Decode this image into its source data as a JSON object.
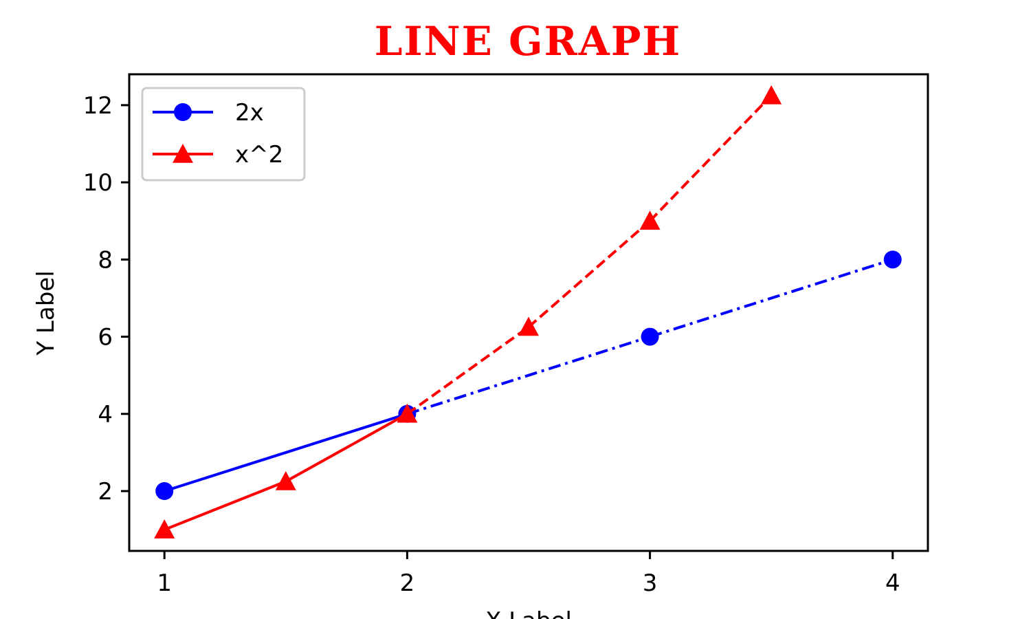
{
  "chart_data": {
    "type": "line",
    "title": "LINE GRAPH",
    "xlabel": "X Label",
    "ylabel": "Y Label",
    "xlim": [
      0.855,
      4.145
    ],
    "ylim": [
      0.45,
      12.8
    ],
    "xticks": [
      1,
      2,
      3,
      4
    ],
    "xtick_labels": [
      "1",
      "2",
      "3",
      "4"
    ],
    "yticks": [
      2,
      4,
      6,
      8,
      10,
      12
    ],
    "ytick_labels": [
      "2",
      "4",
      "6",
      "8",
      "10",
      "12"
    ],
    "grid": false,
    "legend_position": "top-left",
    "series": [
      {
        "name": "2x",
        "color": "#0000ff",
        "marker": "circle",
        "x": [
          1,
          2,
          3,
          4
        ],
        "y": [
          2,
          4,
          6,
          8
        ],
        "line_styles": [
          "solid",
          "dashdot",
          "dashdot"
        ]
      },
      {
        "name": "x^2",
        "color": "#ff0000",
        "marker": "triangle",
        "x": [
          1,
          1.5,
          2,
          2.5,
          3,
          3.5
        ],
        "y": [
          1,
          2.25,
          4,
          6.25,
          9,
          12.25
        ],
        "line_styles": [
          "solid",
          "solid",
          "dashed",
          "dashed",
          "dashed"
        ]
      }
    ]
  }
}
